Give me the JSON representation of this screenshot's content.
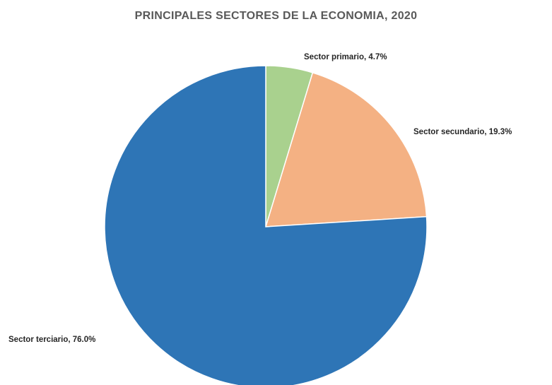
{
  "chart_data": {
    "type": "pie",
    "title": "PRINCIPALES SECTORES DE LA ECONOMIA, 2020",
    "slices": [
      {
        "label": "Sector primario, 4.7%",
        "category": "Sector primario",
        "value": 4.7,
        "color": "#a9d18e"
      },
      {
        "label": "Sector secundario, 19.3%",
        "category": "Sector secundario",
        "value": 19.3,
        "color": "#f4b183"
      },
      {
        "label": "Sector terciario, 76.0%",
        "category": "Sector terciario",
        "value": 76.0,
        "color": "#2e75b6"
      }
    ],
    "start_angle_deg": 0,
    "direction": "clockwise",
    "legend": "none",
    "data_labels": "outside"
  }
}
